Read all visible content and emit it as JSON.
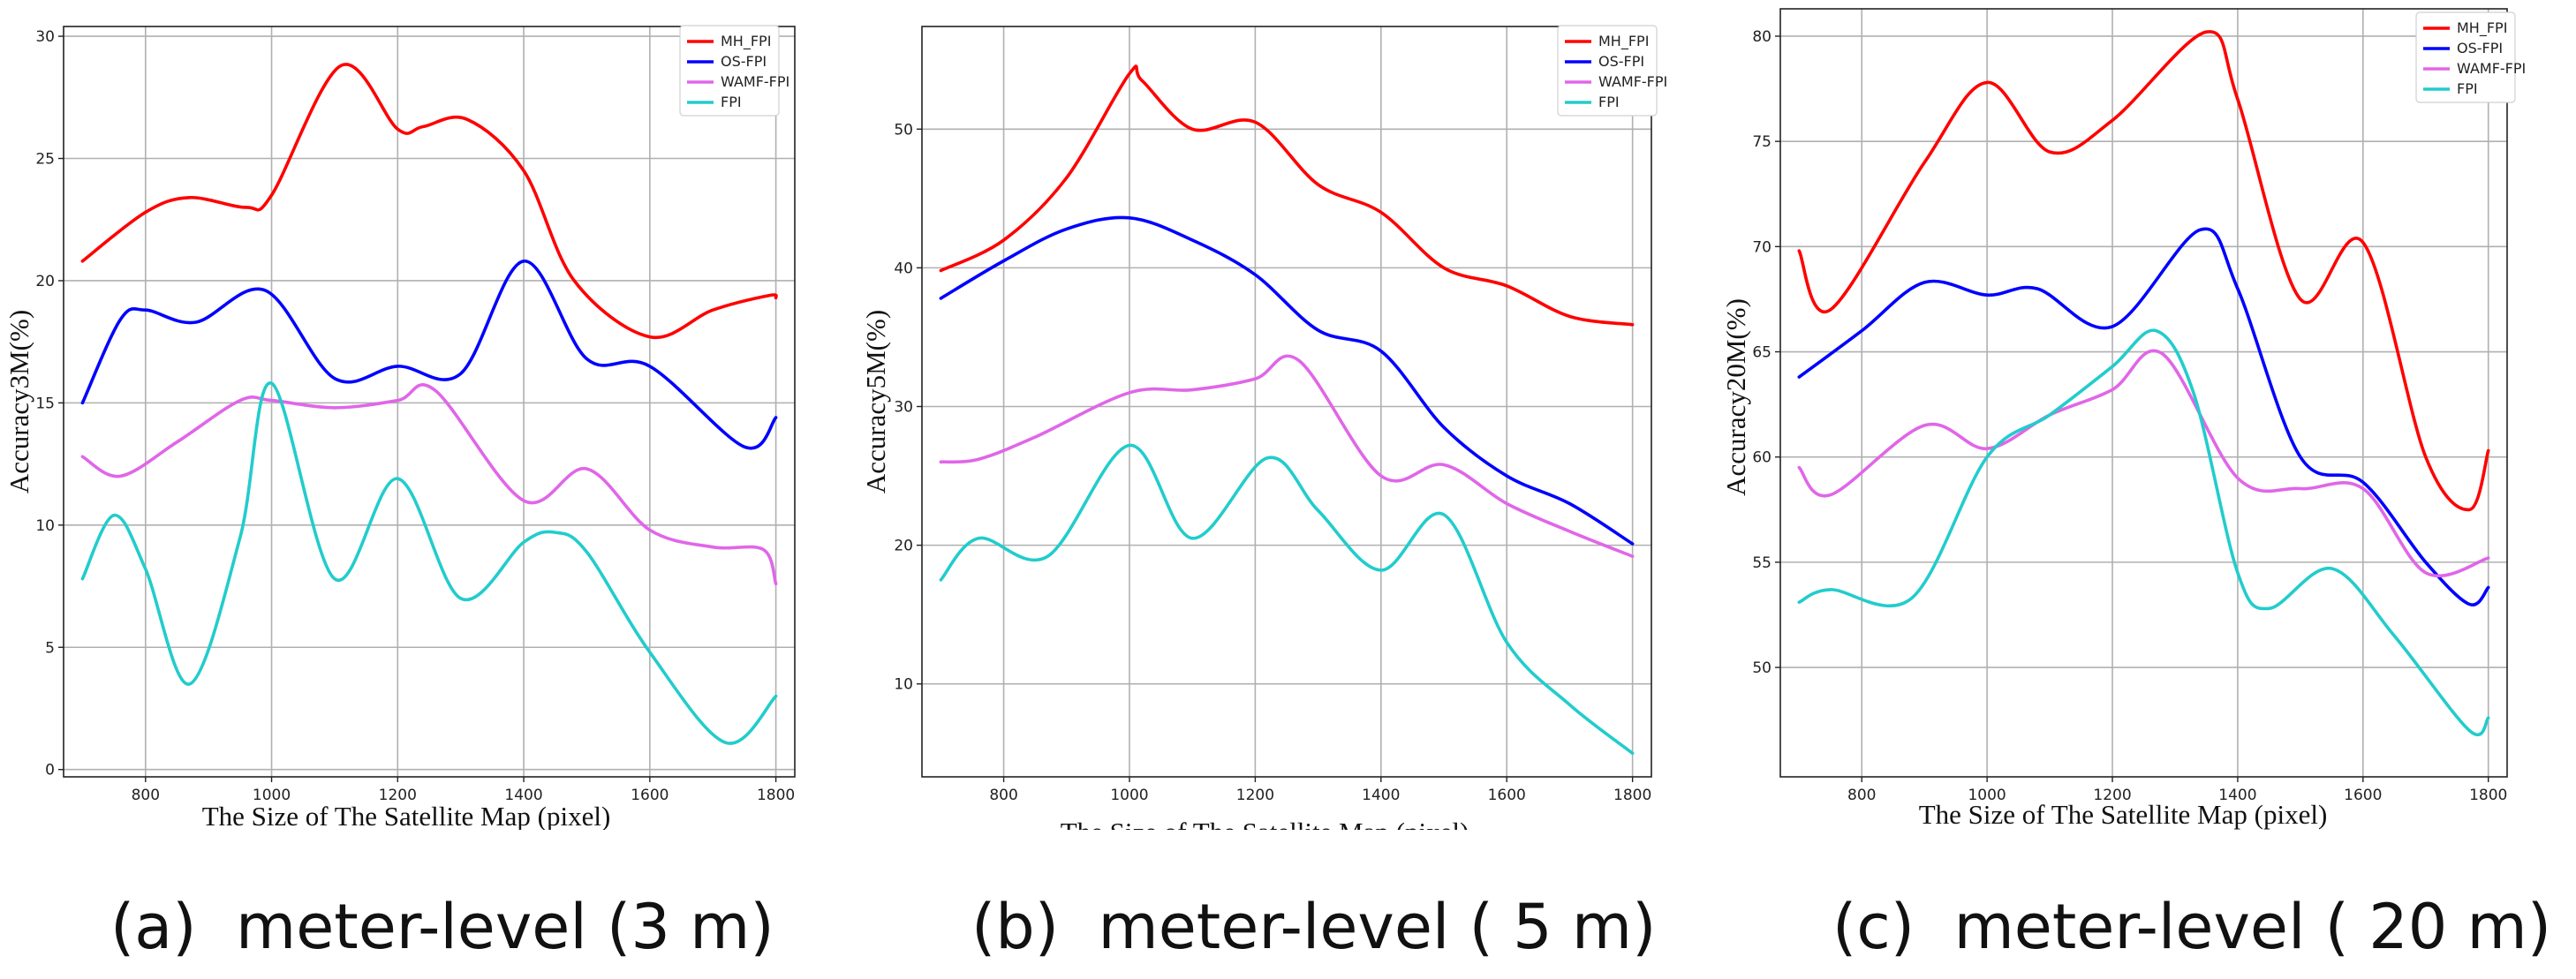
{
  "chart_data": [
    {
      "type": "line",
      "caption": "(a)  meter-level (3 m)",
      "xlabel": "The Size of The Satellite Map (pixel)",
      "ylabel": "Accuracy3M(%)",
      "xlim": [
        670,
        1830
      ],
      "ylim": [
        -0.3,
        30.4
      ],
      "xticks": [
        800,
        1000,
        1200,
        1400,
        1600,
        1800
      ],
      "yticks": [
        0,
        5,
        10,
        15,
        20,
        25,
        30
      ],
      "grid": true,
      "legend": "top-right",
      "series": [
        {
          "name": "MH_FPI",
          "color": "#ff0000",
          "x": [
            700,
            800,
            870,
            960,
            1000,
            1110,
            1200,
            1240,
            1310,
            1400,
            1480,
            1600,
            1700,
            1790,
            1800
          ],
          "y": [
            20.8,
            22.8,
            23.4,
            23.0,
            23.5,
            28.8,
            26.2,
            26.3,
            26.6,
            24.5,
            20.0,
            17.7,
            18.8,
            19.4,
            19.3
          ]
        },
        {
          "name": "OS-FPI",
          "color": "#0000ff",
          "x": [
            700,
            760,
            800,
            880,
            990,
            1100,
            1200,
            1300,
            1400,
            1500,
            1600,
            1750,
            1800
          ],
          "y": [
            15.0,
            18.4,
            18.8,
            18.3,
            19.6,
            16.0,
            16.5,
            16.2,
            20.8,
            16.8,
            16.5,
            13.2,
            14.4
          ]
        },
        {
          "name": "WAMF-FPI",
          "color": "#e066e8",
          "x": [
            700,
            760,
            850,
            950,
            1000,
            1100,
            1200,
            1260,
            1400,
            1500,
            1600,
            1700,
            1780,
            1800
          ],
          "y": [
            12.8,
            12.0,
            13.4,
            15.1,
            15.1,
            14.8,
            15.1,
            15.5,
            11.0,
            12.3,
            9.8,
            9.1,
            9.0,
            7.6
          ]
        },
        {
          "name": "FPI",
          "color": "#22cccc",
          "x": [
            700,
            750,
            800,
            870,
            950,
            1000,
            1100,
            1200,
            1300,
            1400,
            1450,
            1500,
            1600,
            1720,
            1800
          ],
          "y": [
            7.8,
            10.4,
            8.2,
            3.5,
            9.5,
            15.8,
            7.8,
            11.9,
            7.0,
            9.3,
            9.7,
            8.9,
            4.8,
            1.1,
            3.0
          ]
        }
      ]
    },
    {
      "type": "line",
      "caption": "(b)  meter-level ( 5 m)",
      "xlabel": "The Size of The Satellite Map (pixel)",
      "ylabel": "Accuracy5M(%)",
      "xlim": [
        670,
        1830
      ],
      "ylim": [
        3.3,
        57.4
      ],
      "xticks": [
        800,
        1000,
        1200,
        1400,
        1600,
        1800
      ],
      "yticks": [
        10,
        20,
        30,
        40,
        50
      ],
      "grid": true,
      "legend": "top-right",
      "series": [
        {
          "name": "MH_FPI",
          "color": "#ff0000",
          "x": [
            700,
            800,
            900,
            1000,
            1020,
            1100,
            1200,
            1300,
            1400,
            1500,
            1600,
            1700,
            1800
          ],
          "y": [
            39.8,
            42.0,
            46.5,
            54.0,
            53.5,
            50.0,
            50.5,
            46.0,
            44.0,
            40.0,
            38.7,
            36.5,
            35.9
          ]
        },
        {
          "name": "OS-FPI",
          "color": "#0000ff",
          "x": [
            700,
            800,
            900,
            1000,
            1100,
            1200,
            1300,
            1400,
            1500,
            1600,
            1700,
            1800
          ],
          "y": [
            37.8,
            40.5,
            42.8,
            43.6,
            42.0,
            39.5,
            35.5,
            34.0,
            28.5,
            25.0,
            23.0,
            20.1
          ]
        },
        {
          "name": "WAMF-FPI",
          "color": "#e066e8",
          "x": [
            700,
            760,
            850,
            1000,
            1100,
            1200,
            1270,
            1400,
            1500,
            1600,
            1700,
            1800
          ],
          "y": [
            26.0,
            26.2,
            27.8,
            31.0,
            31.2,
            32.0,
            33.3,
            25.0,
            25.8,
            23.0,
            21.0,
            19.2
          ]
        },
        {
          "name": "FPI",
          "color": "#22cccc",
          "x": [
            700,
            760,
            870,
            1000,
            1100,
            1220,
            1300,
            1400,
            1500,
            1600,
            1700,
            1800
          ],
          "y": [
            17.5,
            20.5,
            19.2,
            27.2,
            20.5,
            26.3,
            22.5,
            18.2,
            22.2,
            13.0,
            8.5,
            5.0
          ]
        }
      ]
    },
    {
      "type": "line",
      "caption": "(c)  meter-level ( 20 m)",
      "xlabel": "The Size of The Satellite Map (pixel)",
      "ylabel": "Accuracy20M(%)",
      "xlim": [
        670,
        1830
      ],
      "ylim": [
        44.8,
        81.3
      ],
      "xticks": [
        800,
        1000,
        1200,
        1400,
        1600,
        1800
      ],
      "yticks": [
        50,
        55,
        60,
        65,
        70,
        75,
        80
      ],
      "grid": true,
      "legend": "top-right",
      "series": [
        {
          "name": "MH_FPI",
          "color": "#ff0000",
          "x": [
            700,
            750,
            900,
            1000,
            1100,
            1200,
            1350,
            1400,
            1500,
            1600,
            1700,
            1770,
            1800
          ],
          "y": [
            69.8,
            67.0,
            74.0,
            77.8,
            74.5,
            76.0,
            80.2,
            77.0,
            67.5,
            70.2,
            60.0,
            57.5,
            60.3
          ]
        },
        {
          "name": "OS-FPI",
          "color": "#0000ff",
          "x": [
            700,
            800,
            900,
            1000,
            1080,
            1200,
            1340,
            1400,
            1500,
            1600,
            1700,
            1770,
            1800
          ],
          "y": [
            63.8,
            66.0,
            68.3,
            67.7,
            68.0,
            66.2,
            70.8,
            68.0,
            60.0,
            58.8,
            55.0,
            53.0,
            53.8
          ]
        },
        {
          "name": "WAMF-FPI",
          "color": "#e066e8",
          "x": [
            700,
            750,
            900,
            1000,
            1100,
            1200,
            1280,
            1400,
            1500,
            1600,
            1700,
            1800
          ],
          "y": [
            59.5,
            58.2,
            61.5,
            60.4,
            62.0,
            63.2,
            64.9,
            59.0,
            58.5,
            58.5,
            54.5,
            55.2
          ]
        },
        {
          "name": "FPI",
          "color": "#22cccc",
          "x": [
            700,
            750,
            880,
            1000,
            1100,
            1200,
            1270,
            1330,
            1400,
            1450,
            1550,
            1650,
            1770,
            1800
          ],
          "y": [
            53.1,
            53.7,
            53.3,
            60.0,
            62.0,
            64.3,
            66.0,
            63.0,
            54.5,
            52.8,
            54.7,
            51.5,
            47.0,
            47.6
          ]
        }
      ]
    }
  ]
}
